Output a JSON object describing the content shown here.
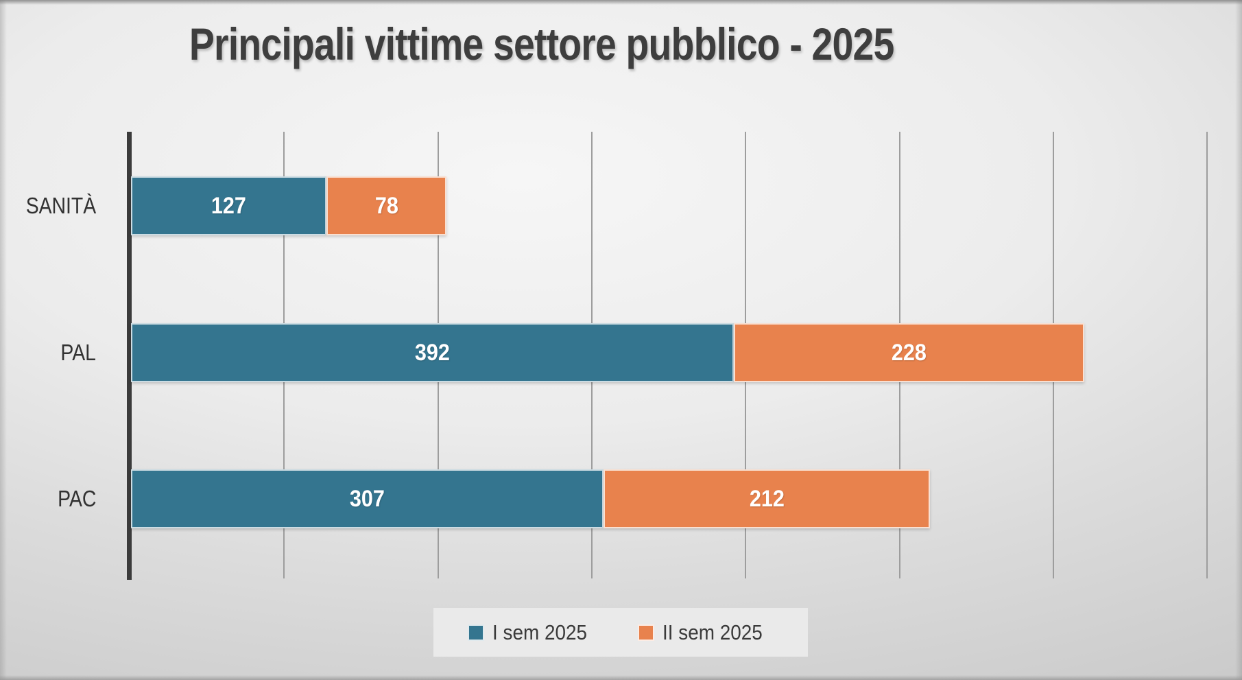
{
  "chart_data": {
    "type": "bar",
    "orientation": "horizontal-stacked",
    "title": "Principali vittime settore pubblico - 2025",
    "categories": [
      "SANITÀ",
      "PAL",
      "PAC"
    ],
    "series": [
      {
        "name": "I sem 2025",
        "color": "#34758f",
        "values": [
          127,
          392,
          307
        ]
      },
      {
        "name": "II sem 2025",
        "color": "#e8824d",
        "values": [
          78,
          228,
          212
        ]
      }
    ],
    "totals": [
      205,
      620,
      519
    ],
    "xlim": [
      0,
      700
    ],
    "gridline_step": 100,
    "grid": true,
    "x_tick_labels_visible": false,
    "legend_position": "bottom",
    "value_labels": "inside-center",
    "value_label_color": "#ffffff",
    "axis_line_color": "#3b3b3b",
    "gridline_color": "#9d9d9d",
    "title_color": "#3e3e3e",
    "background_color": "#e6e6e6"
  }
}
